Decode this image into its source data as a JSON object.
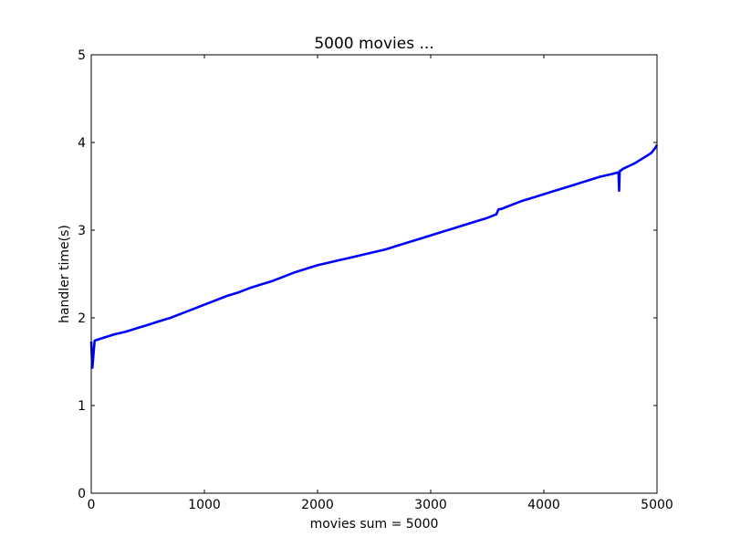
{
  "chart_data": {
    "type": "line",
    "title": "5000 movies ...",
    "xlabel": "movies sum = 5000",
    "ylabel": "handler time(s)",
    "xlim": [
      0,
      5000
    ],
    "ylim": [
      0,
      5
    ],
    "xticks": [
      0,
      1000,
      2000,
      3000,
      4000,
      5000
    ],
    "yticks": [
      0,
      1,
      2,
      3,
      4,
      5
    ],
    "grid": false,
    "line_color": "#0000ff",
    "series": [
      {
        "x": [
          0,
          10,
          30,
          100,
          200,
          300,
          400,
          500,
          600,
          700,
          800,
          900,
          1000,
          1100,
          1200,
          1300,
          1400,
          1500,
          1600,
          1700,
          1800,
          1900,
          2000,
          2100,
          2200,
          2300,
          2400,
          2500,
          2600,
          2700,
          2800,
          2900,
          3000,
          3100,
          3200,
          3300,
          3400,
          3500,
          3580,
          3600,
          3620,
          3700,
          3800,
          3900,
          4000,
          4100,
          4200,
          4300,
          4400,
          4500,
          4600,
          4660,
          4665,
          4670,
          4675,
          4680,
          4700,
          4800,
          4850,
          4900,
          4950,
          4980,
          5000
        ],
        "y": [
          1.73,
          1.43,
          1.74,
          1.77,
          1.81,
          1.84,
          1.88,
          1.92,
          1.96,
          2.0,
          2.05,
          2.1,
          2.15,
          2.2,
          2.25,
          2.29,
          2.34,
          2.38,
          2.42,
          2.47,
          2.52,
          2.56,
          2.6,
          2.63,
          2.66,
          2.69,
          2.72,
          2.75,
          2.78,
          2.82,
          2.86,
          2.9,
          2.94,
          2.98,
          3.02,
          3.06,
          3.1,
          3.14,
          3.18,
          3.24,
          3.24,
          3.28,
          3.33,
          3.37,
          3.41,
          3.45,
          3.49,
          3.53,
          3.57,
          3.61,
          3.64,
          3.66,
          3.45,
          3.67,
          3.68,
          3.68,
          3.7,
          3.76,
          3.8,
          3.84,
          3.88,
          3.93,
          3.97
        ]
      }
    ]
  }
}
